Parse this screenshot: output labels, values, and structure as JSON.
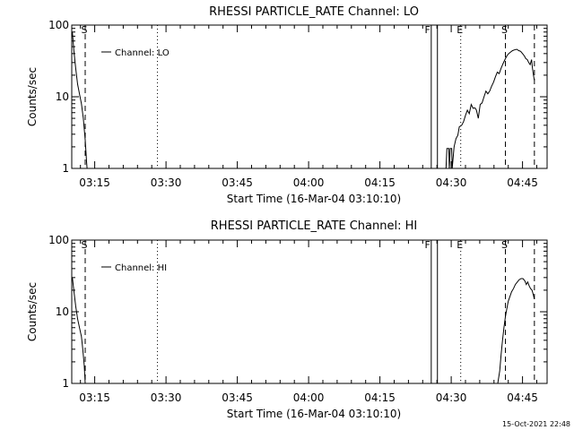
{
  "chart_data": [
    {
      "type": "line",
      "title": "RHESSI PARTICLE_RATE Channel: LO",
      "xlabel": "Start Time (16-Mar-04 03:10:10)",
      "ylabel": "Counts/sec",
      "x_unit": "minutes of day (UT)",
      "xlim": [
        190.17,
        290.17
      ],
      "ylim": [
        1,
        100
      ],
      "yscale": "log",
      "x_ticks": [
        {
          "v": 195,
          "label": "03:15"
        },
        {
          "v": 210,
          "label": "03:30"
        },
        {
          "v": 225,
          "label": "03:45"
        },
        {
          "v": 240,
          "label": "04:00"
        },
        {
          "v": 255,
          "label": "04:15"
        },
        {
          "v": 270,
          "label": "04:30"
        },
        {
          "v": 285,
          "label": "04:45"
        }
      ],
      "y_ticks": [
        {
          "v": 1,
          "label": "1"
        },
        {
          "v": 10,
          "label": "10"
        },
        {
          "v": 100,
          "label": "100"
        }
      ],
      "legend": {
        "label": "Channel: LO",
        "position": "top-left"
      },
      "markers": [
        {
          "t": 193.0,
          "style": "dashed",
          "label": "S"
        },
        {
          "t": 208.2,
          "style": "dotted",
          "label": ""
        },
        {
          "t": 265.8,
          "style": "solid",
          "label": "F"
        },
        {
          "t": 267.1,
          "style": "solid",
          "label": ""
        },
        {
          "t": 272.0,
          "style": "dotted",
          "label": "E"
        },
        {
          "t": 281.4,
          "style": "dashed",
          "label": "S"
        },
        {
          "t": 287.5,
          "style": "dashed",
          "label": ""
        }
      ],
      "series": [
        {
          "segments": [
            [
              [
                190.3,
                80
              ],
              [
                190.6,
                45
              ],
              [
                191.0,
                25
              ],
              [
                191.4,
                15
              ],
              [
                191.8,
                11
              ],
              [
                192.2,
                8
              ],
              [
                192.6,
                5
              ],
              [
                193.0,
                2.5
              ],
              [
                193.3,
                1.2
              ],
              [
                193.4,
                1
              ]
            ],
            [
              [
                268.9,
                1
              ],
              [
                269.1,
                1.9
              ],
              [
                269.5,
                1.9
              ],
              [
                269.6,
                1
              ],
              [
                269.8,
                1.9
              ],
              [
                270.1,
                1.9
              ],
              [
                270.2,
                1
              ],
              [
                270.6,
                2.0
              ],
              [
                271.0,
                2.6
              ],
              [
                271.4,
                2.9
              ],
              [
                271.7,
                3.8
              ],
              [
                272.2,
                4.0
              ],
              [
                272.6,
                4.5
              ],
              [
                273.0,
                5.5
              ],
              [
                273.4,
                6.5
              ],
              [
                273.8,
                5.8
              ],
              [
                274.2,
                7.8
              ],
              [
                274.6,
                6.9
              ],
              [
                275.0,
                7.0
              ],
              [
                275.3,
                6.5
              ],
              [
                275.7,
                5.0
              ],
              [
                276.1,
                7.8
              ],
              [
                276.5,
                8.2
              ],
              [
                276.9,
                10
              ],
              [
                277.3,
                12
              ],
              [
                277.7,
                11
              ],
              [
                278.1,
                12
              ],
              [
                278.5,
                14
              ],
              [
                278.9,
                16
              ],
              [
                279.3,
                19
              ],
              [
                279.7,
                22
              ],
              [
                280.1,
                21
              ],
              [
                280.5,
                25
              ],
              [
                280.9,
                29
              ],
              [
                281.3,
                33
              ],
              [
                281.7,
                37
              ],
              [
                282.1,
                40
              ],
              [
                282.5,
                42
              ],
              [
                282.9,
                44
              ],
              [
                283.3,
                45
              ],
              [
                283.8,
                46
              ],
              [
                284.2,
                44
              ],
              [
                284.6,
                43
              ],
              [
                285.0,
                40
              ],
              [
                285.4,
                37
              ],
              [
                285.7,
                34
              ],
              [
                286.0,
                33
              ],
              [
                286.3,
                30
              ],
              [
                286.6,
                28
              ],
              [
                286.9,
                33
              ],
              [
                287.1,
                25
              ],
              [
                287.3,
                20
              ],
              [
                287.5,
                17
              ]
            ]
          ]
        }
      ]
    },
    {
      "type": "line",
      "title": "RHESSI PARTICLE_RATE Channel: HI",
      "xlabel": "Start Time (16-Mar-04 03:10:10)",
      "ylabel": "Counts/sec",
      "x_unit": "minutes of day (UT)",
      "xlim": [
        190.17,
        290.17
      ],
      "ylim": [
        1,
        100
      ],
      "yscale": "log",
      "x_ticks": [
        {
          "v": 195,
          "label": "03:15"
        },
        {
          "v": 210,
          "label": "03:30"
        },
        {
          "v": 225,
          "label": "03:45"
        },
        {
          "v": 240,
          "label": "04:00"
        },
        {
          "v": 255,
          "label": "04:15"
        },
        {
          "v": 270,
          "label": "04:30"
        },
        {
          "v": 285,
          "label": "04:45"
        }
      ],
      "y_ticks": [
        {
          "v": 1,
          "label": "1"
        },
        {
          "v": 10,
          "label": "10"
        },
        {
          "v": 100,
          "label": "100"
        }
      ],
      "legend": {
        "label": "Channel: HI",
        "position": "top-left"
      },
      "markers": [
        {
          "t": 193.0,
          "style": "dashed",
          "label": "S"
        },
        {
          "t": 208.2,
          "style": "dotted",
          "label": ""
        },
        {
          "t": 265.8,
          "style": "solid",
          "label": "F"
        },
        {
          "t": 267.1,
          "style": "solid",
          "label": ""
        },
        {
          "t": 272.0,
          "style": "dotted",
          "label": "E"
        },
        {
          "t": 281.4,
          "style": "dashed",
          "label": "S"
        },
        {
          "t": 287.5,
          "style": "dashed",
          "label": ""
        }
      ],
      "series": [
        {
          "segments": [
            [
              [
                190.3,
                30
              ],
              [
                190.6,
                20
              ],
              [
                191.0,
                12
              ],
              [
                191.4,
                8
              ],
              [
                191.8,
                6
              ],
              [
                192.2,
                4.5
              ],
              [
                192.5,
                3
              ],
              [
                192.8,
                1.8
              ],
              [
                193.0,
                1
              ]
            ],
            [
              [
                279.8,
                1
              ],
              [
                280.2,
                1.5
              ],
              [
                280.5,
                2.5
              ],
              [
                280.8,
                4
              ],
              [
                281.1,
                6
              ],
              [
                281.4,
                8.5
              ],
              [
                281.7,
                11
              ],
              [
                282.0,
                14
              ],
              [
                282.3,
                16
              ],
              [
                282.7,
                19
              ],
              [
                283.1,
                21
              ],
              [
                283.5,
                24
              ],
              [
                283.9,
                26
              ],
              [
                284.3,
                28
              ],
              [
                284.7,
                29
              ],
              [
                285.1,
                29
              ],
              [
                285.5,
                27
              ],
              [
                285.8,
                24
              ],
              [
                286.1,
                26
              ],
              [
                286.4,
                23
              ],
              [
                286.7,
                21
              ],
              [
                287.0,
                20
              ],
              [
                287.3,
                17
              ],
              [
                287.5,
                15
              ]
            ]
          ]
        }
      ]
    }
  ],
  "footer": {
    "timestamp": "15-Oct-2021 22:48"
  },
  "style": {
    "line_color": "#000000",
    "background": "#ffffff"
  }
}
